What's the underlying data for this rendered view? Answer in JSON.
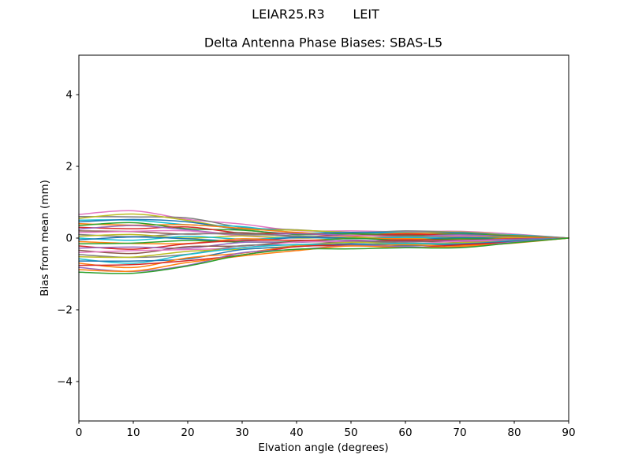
{
  "figure": {
    "suptitle": "LEIAR25.R3       LEIT",
    "title": "Delta Antenna Phase Biases: SBAS-L5",
    "xlabel": "Elvation angle (degrees)",
    "ylabel": "Bias from mean (mm)"
  },
  "chart_data": {
    "type": "line",
    "suptitle": "LEIAR25.R3       LEIT",
    "title": "Delta Antenna Phase Biases: SBAS-L5",
    "xlabel": "Elvation angle (degrees)",
    "ylabel": "Bias from mean (mm)",
    "xlim": [
      0,
      90
    ],
    "ylim": [
      -5.1,
      5.1
    ],
    "xticks": [
      0,
      10,
      20,
      30,
      40,
      50,
      60,
      70,
      80,
      90
    ],
    "xtick_labels": [
      "0",
      "10",
      "20",
      "30",
      "40",
      "50",
      "60",
      "70",
      "80",
      "90"
    ],
    "yticks": [
      -4,
      -2,
      0,
      2,
      4
    ],
    "ytick_labels": [
      "−4",
      "−2",
      "0",
      "2",
      "4"
    ],
    "grid": false,
    "legend": "none",
    "line_width": 1.5,
    "background": "#ffffff",
    "axes_color": "#000000",
    "palette": [
      "#1f77b4",
      "#ff7f0e",
      "#2ca02c",
      "#d62728",
      "#9467bd",
      "#8c564b",
      "#e377c2",
      "#7f7f7f",
      "#bcbd22",
      "#17becf"
    ],
    "x": [
      0,
      10,
      20,
      30,
      40,
      50,
      60,
      70,
      80,
      90
    ],
    "series": [
      {
        "name": "line-01",
        "color": "#e377c2",
        "y": [
          0.66,
          0.76,
          0.52,
          0.39,
          0.21,
          0.2,
          0.18,
          0.19,
          0.11,
          0
        ]
      },
      {
        "name": "line-02",
        "color": "#7f7f7f",
        "y": [
          0.6,
          0.59,
          0.56,
          0.3,
          0.23,
          0.15,
          0.2,
          0.16,
          0.08,
          0
        ]
      },
      {
        "name": "line-03",
        "color": "#bcbd22",
        "y": [
          0.55,
          0.67,
          0.49,
          0.25,
          0.22,
          0.16,
          0.14,
          0.17,
          0.08,
          0
        ]
      },
      {
        "name": "line-04",
        "color": "#17becf",
        "y": [
          0.5,
          0.5,
          0.37,
          0.32,
          0.15,
          0.16,
          0.16,
          0.12,
          0.09,
          0
        ]
      },
      {
        "name": "line-05",
        "color": "#1f77b4",
        "y": [
          0.45,
          0.52,
          0.45,
          0.23,
          0.12,
          0.16,
          0.13,
          0.15,
          0.06,
          0
        ]
      },
      {
        "name": "line-06",
        "color": "#ff7f0e",
        "y": [
          0.4,
          0.36,
          0.37,
          0.27,
          0.16,
          0.08,
          0.14,
          0.11,
          0.07,
          0
        ]
      },
      {
        "name": "line-07",
        "color": "#2ca02c",
        "y": [
          0.35,
          0.43,
          0.26,
          0.22,
          0.1,
          0.12,
          0.09,
          0.11,
          0.06,
          0
        ]
      },
      {
        "name": "line-08",
        "color": "#d62728",
        "y": [
          0.3,
          0.26,
          0.31,
          0.14,
          0.13,
          0.06,
          0.11,
          0.07,
          0.04,
          0
        ]
      },
      {
        "name": "line-09",
        "color": "#9467bd",
        "y": [
          0.25,
          0.35,
          0.23,
          0.09,
          0.12,
          0.08,
          0.05,
          0.09,
          0.04,
          0
        ]
      },
      {
        "name": "line-10",
        "color": "#8c564b",
        "y": [
          0.2,
          0.18,
          0.11,
          0.15,
          0.04,
          0.08,
          0.07,
          0.04,
          0.04,
          0
        ]
      },
      {
        "name": "line-11",
        "color": "#e377c2",
        "y": [
          0.15,
          0.19,
          0.2,
          0.06,
          0.01,
          0.07,
          0.04,
          0.06,
          0.01,
          0
        ]
      },
      {
        "name": "line-12",
        "color": "#7f7f7f",
        "y": [
          0.1,
          0.04,
          0.12,
          0.11,
          0.06,
          0.0,
          0.05,
          0.03,
          0.03,
          0
        ]
      },
      {
        "name": "line-13",
        "color": "#bcbd22",
        "y": [
          0.05,
          0.1,
          0.0,
          0.06,
          0.0,
          0.03,
          -0.01,
          0.02,
          0.02,
          0
        ]
      },
      {
        "name": "line-14",
        "color": "#17becf",
        "y": [
          0.0,
          -0.06,
          0.05,
          -0.03,
          0.02,
          -0.02,
          0.02,
          -0.01,
          -0.01,
          0
        ]
      },
      {
        "name": "line-15",
        "color": "#1f77b4",
        "y": [
          -0.05,
          0.03,
          -0.02,
          -0.08,
          0.01,
          0.0,
          -0.05,
          0.01,
          -0.01,
          0
        ]
      },
      {
        "name": "line-16",
        "color": "#ff7f0e",
        "y": [
          -0.1,
          -0.15,
          -0.15,
          -0.02,
          -0.07,
          -0.01,
          -0.02,
          -0.05,
          0.0,
          0
        ]
      },
      {
        "name": "line-17",
        "color": "#2ca02c",
        "y": [
          -0.16,
          -0.14,
          -0.07,
          -0.11,
          -0.1,
          -0.01,
          -0.06,
          -0.02,
          -0.03,
          0
        ]
      },
      {
        "name": "line-18",
        "color": "#d62728",
        "y": [
          -0.22,
          -0.31,
          -0.16,
          -0.07,
          -0.06,
          -0.09,
          -0.05,
          -0.06,
          -0.02,
          0
        ]
      },
      {
        "name": "line-19",
        "color": "#9467bd",
        "y": [
          -0.28,
          -0.25,
          -0.28,
          -0.12,
          -0.12,
          -0.06,
          -0.1,
          -0.07,
          -0.03,
          0
        ]
      },
      {
        "name": "line-20",
        "color": "#8c564b",
        "y": [
          -0.34,
          -0.43,
          -0.24,
          -0.22,
          -0.1,
          -0.12,
          -0.08,
          -0.11,
          -0.06,
          0
        ]
      },
      {
        "name": "line-21",
        "color": "#e377c2",
        "y": [
          -0.4,
          -0.35,
          -0.32,
          -0.27,
          -0.11,
          -0.1,
          -0.15,
          -0.09,
          -0.06,
          0
        ]
      },
      {
        "name": "line-22",
        "color": "#7f7f7f",
        "y": [
          -0.46,
          -0.54,
          -0.45,
          -0.21,
          -0.19,
          -0.11,
          -0.13,
          -0.15,
          -0.06,
          0
        ]
      },
      {
        "name": "line-23",
        "color": "#bcbd22",
        "y": [
          -0.52,
          -0.53,
          -0.37,
          -0.31,
          -0.22,
          -0.12,
          -0.17,
          -0.13,
          -0.09,
          0
        ]
      },
      {
        "name": "line-24",
        "color": "#17becf",
        "y": [
          -0.58,
          -0.7,
          -0.46,
          -0.27,
          -0.18,
          -0.19,
          -0.15,
          -0.16,
          -0.08,
          0
        ]
      },
      {
        "name": "line-25",
        "color": "#1f77b4",
        "y": [
          -0.64,
          -0.64,
          -0.58,
          -0.32,
          -0.24,
          -0.16,
          -0.21,
          -0.17,
          -0.09,
          0
        ]
      },
      {
        "name": "line-26",
        "color": "#ff7f0e",
        "y": [
          -0.7,
          -0.82,
          -0.55,
          -0.42,
          -0.23,
          -0.22,
          -0.19,
          -0.21,
          -0.12,
          0
        ]
      },
      {
        "name": "line-27",
        "color": "#d62728",
        "y": [
          -0.76,
          -0.74,
          -0.63,
          -0.47,
          -0.24,
          -0.2,
          -0.26,
          -0.19,
          -0.11,
          0
        ]
      },
      {
        "name": "line-28",
        "color": "#9467bd",
        "y": [
          -0.82,
          -0.93,
          -0.76,
          -0.41,
          -0.32,
          -0.21,
          -0.24,
          -0.25,
          -0.11,
          0
        ]
      },
      {
        "name": "line-29",
        "color": "#ff7f0e",
        "y": [
          -0.88,
          -0.92,
          -0.68,
          -0.5,
          -0.35,
          -0.22,
          -0.27,
          -0.23,
          -0.14,
          0
        ]
      },
      {
        "name": "line-30",
        "color": "#2ca02c",
        "y": [
          -0.95,
          -0.98,
          -0.78,
          -0.47,
          -0.31,
          -0.3,
          -0.27,
          -0.27,
          -0.13,
          0
        ]
      }
    ]
  }
}
